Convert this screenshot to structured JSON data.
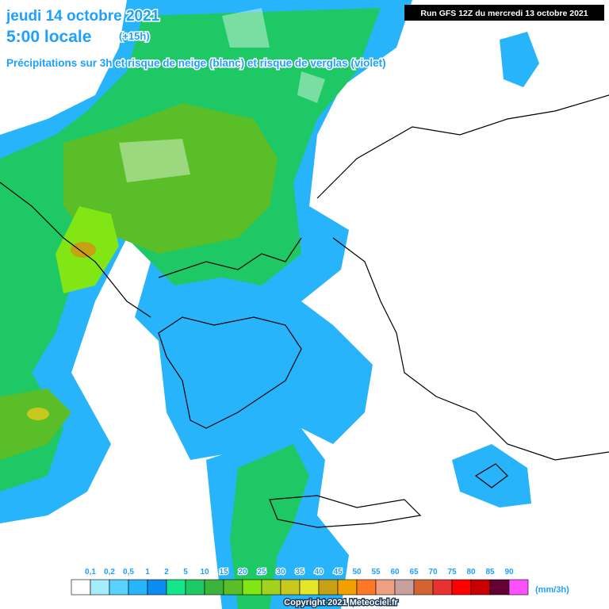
{
  "header": {
    "date": "jeudi 14 octobre 2021",
    "time": "5:00 locale",
    "offset": "(+15h)",
    "subtitle": "Précipitations sur 3h et risque de neige (blanc) et risque de verglas (violet)",
    "run": "Run GFS 12Z du mercredi 13 octobre 2021"
  },
  "legend": {
    "labels": [
      "0,1",
      "0,2",
      "0,5",
      1,
      2,
      5,
      10,
      15,
      20,
      25,
      30,
      35,
      40,
      45,
      50,
      55,
      60,
      65,
      70,
      75,
      80,
      85,
      90
    ],
    "colors": [
      "#ffffff",
      "#a5ecff",
      "#5ad2ff",
      "#28b4fa",
      "#0a8cf0",
      "#14e68c",
      "#1ec864",
      "#3cb43c",
      "#5abe28",
      "#82e614",
      "#a0d21e",
      "#c8c81e",
      "#e6e628",
      "#c8a014",
      "#f0a000",
      "#ff7828",
      "#f0a082",
      "#c8a0a0",
      "#d26432",
      "#e63232",
      "#ff0000",
      "#c80000",
      "#640032",
      "#ff50ff"
    ],
    "unit": "(mm/3h)"
  },
  "footer": {
    "copyright": "Copyright 2021 Meteociel.fr"
  }
}
